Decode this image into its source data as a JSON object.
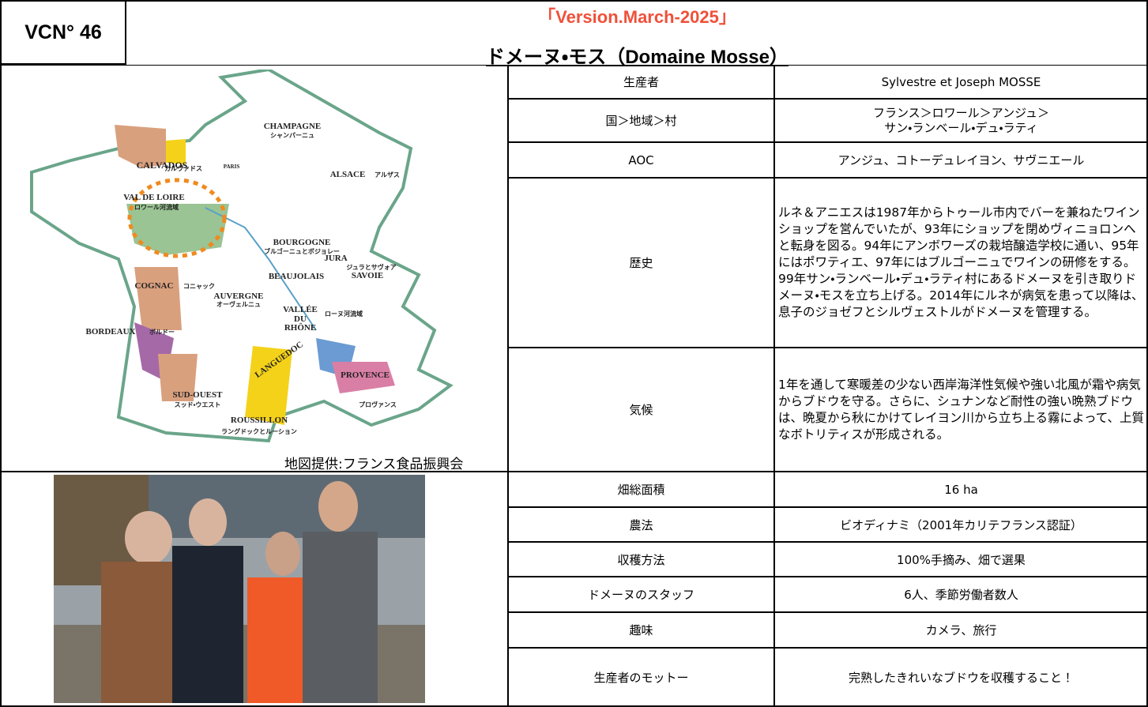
{
  "header": {
    "code": "VCN° 46",
    "version": "「Version.March-2025」",
    "title": "ドメーヌ・モス（Domaine Mosse）"
  },
  "map": {
    "labels": [
      "CHAMPAGNE",
      "シャンパーニュ",
      "CALVADOS",
      "カルヴァドス",
      "PARIS",
      "ALSACE",
      "アルザス",
      "VAL DE LOIRE",
      "ロワール河流域",
      "BOURGOGNE",
      "ブルゴーニュとボジョレー",
      "JURA",
      "ジュラとサヴォア",
      "SAVOIE",
      "BEAUJOLAIS",
      "COGNAC",
      "コニャック",
      "AUVERGNE",
      "オーヴェルニュ",
      "VALLÉE",
      "DU",
      "RHÔNE",
      "ローヌ河流域",
      "BORDEAUX",
      "ボルドー",
      "LANGUEDOC",
      "PROVENCE",
      "SUD-OUEST",
      "スッド・ウエスト",
      "ROUSSILLON",
      "ラングドックとルーション",
      "プロヴァンス"
    ],
    "credit": "地図提供:フランス食品振興会"
  },
  "table": {
    "rows": [
      [
        "生産者",
        "Sylvestre et Joseph MOSSE"
      ],
      [
        "国＞地域＞村",
        [
          "フランス＞ロワール＞アンジュ＞",
          "サン・ランベール・デュ・ラティ"
        ]
      ],
      [
        "AOC",
        "アンジュ、コトーデュレイヨン、サヴニエール"
      ],
      [
        "歴史",
        "ルネ＆アニエスは1987年からトゥール市内でバーを兼ねたワインショップを営んでいたが、93年にショップを閉めヴィニョロンへと転身を図る。94年にアンボワーズの栽培醸造学校に通い、95年にはポワティエ、97年にはブルゴーニュでワインの研修をする。99年サン・ランベール・デュ・ラティ村にあるドメーヌを引き取りドメーヌ・モスを立ち上げる。2014年にルネが病気を患って以降は、息子のジョゼフとシルヴェストルがドメーヌを管理する。"
      ],
      [
        "気候",
        "1年を通して寒暖差の少ない西岸海洋性気候や強い北風が霜や病気からブドウを守る。さらに、シュナンなど耐性の強い晩熟ブドウは、晩夏から秋にかけてレイヨン川から立ち上る霧によって、上質なボトリティスが形成される。"
      ],
      [
        "畑総面積",
        "16 ha"
      ],
      [
        "農法",
        "ビオディナミ（2001年カリテフランス認証）"
      ],
      [
        "収穫方法",
        "100%手摘み、畑で選果"
      ],
      [
        "ドメーヌのスタッフ",
        "6人、季節労働者数人"
      ],
      [
        "趣味",
        "カメラ、旅行"
      ],
      [
        "生産者のモットー",
        "完熟したきれいなブドウを収穫すること！"
      ]
    ]
  }
}
